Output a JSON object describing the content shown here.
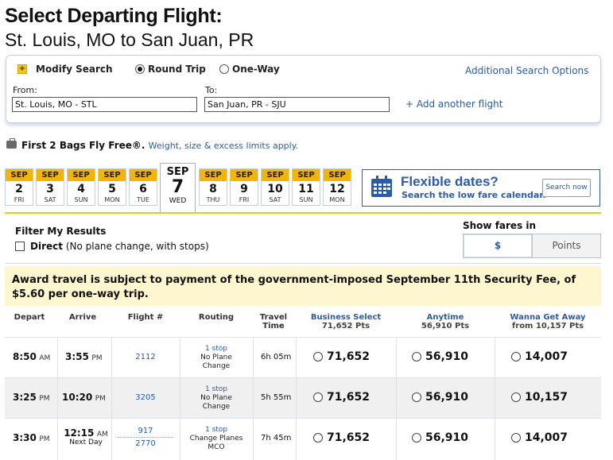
{
  "header": {
    "title": "Select Departing Flight:",
    "route": "St. Louis, MO to San Juan, PR"
  },
  "search": {
    "modify_label": "Modify Search",
    "round_trip": "Round Trip",
    "one_way": "One-Way",
    "additional_options": "Additional Search Options",
    "from_label": "From:",
    "from_value": "St. Louis, MO - STL",
    "to_label": "To:",
    "to_value": "San Juan, PR - SJU",
    "add_flight": "+ Add another flight"
  },
  "bags": {
    "bold": "First 2 Bags Fly Free®.",
    "link": "Weight, size & excess limits apply."
  },
  "dates": [
    {
      "mon": "SEP",
      "num": "2",
      "dow": "FRI"
    },
    {
      "mon": "SEP",
      "num": "3",
      "dow": "SAT"
    },
    {
      "mon": "SEP",
      "num": "4",
      "dow": "SUN"
    },
    {
      "mon": "SEP",
      "num": "5",
      "dow": "MON"
    },
    {
      "mon": "SEP",
      "num": "6",
      "dow": "TUE"
    },
    {
      "mon": "SEP",
      "num": "7",
      "dow": "WED"
    },
    {
      "mon": "SEP",
      "num": "8",
      "dow": "THU"
    },
    {
      "mon": "SEP",
      "num": "9",
      "dow": "FRI"
    },
    {
      "mon": "SEP",
      "num": "10",
      "dow": "SAT"
    },
    {
      "mon": "SEP",
      "num": "11",
      "dow": "SUN"
    },
    {
      "mon": "SEP",
      "num": "12",
      "dow": "MON"
    }
  ],
  "flexible": {
    "title": "Flexible dates?",
    "subtitle": "Search the low fare calendar.",
    "button": "Search now"
  },
  "filter": {
    "heading": "Filter My Results",
    "direct_bold": "Direct",
    "direct_note": "(No plane change, with stops)",
    "show_fares": "Show fares in",
    "dollar": "$",
    "points": "Points"
  },
  "award_notice": "Award travel is subject to payment of the government-imposed September 11th Security Fee, of $5.60 per one-way trip.",
  "table": {
    "headers": {
      "depart": "Depart",
      "arrive": "Arrive",
      "flight": "Flight #",
      "routing": "Routing",
      "travel1": "Travel",
      "travel2": "Time",
      "business": "Business Select",
      "business_sub": "71,652 Pts",
      "anytime": "Anytime",
      "anytime_sub": "56,910 Pts",
      "wanna": "Wanna Get Away",
      "wanna_sub": "from 10,157 Pts"
    },
    "rows": [
      {
        "dep": "8:50",
        "dep_ampm": "AM",
        "arr": "3:55",
        "arr_ampm": "PM",
        "arr_note": "",
        "flight1": "2112",
        "flight2": "",
        "stops": "1 stop",
        "routing1": "No Plane",
        "routing2": "Change",
        "time": "6h 05m",
        "business": "71,652",
        "anytime": "56,910",
        "wanna": "14,007"
      },
      {
        "dep": "3:25",
        "dep_ampm": "PM",
        "arr": "10:20",
        "arr_ampm": "PM",
        "arr_note": "",
        "flight1": "3205",
        "flight2": "",
        "stops": "1 stop",
        "routing1": "No Plane",
        "routing2": "Change",
        "time": "5h 55m",
        "business": "71,652",
        "anytime": "56,910",
        "wanna": "10,157"
      },
      {
        "dep": "3:30",
        "dep_ampm": "PM",
        "arr": "12:15",
        "arr_ampm": "AM",
        "arr_note": "Next Day",
        "flight1": "917",
        "flight2": "2770",
        "stops": "1 stop",
        "routing1": "Change Planes",
        "routing2": "MCO",
        "time": "7h 45m",
        "business": "71,652",
        "anytime": "56,910",
        "wanna": "14,007"
      }
    ]
  },
  "colors": {
    "accent_blue": "#2a5ca8",
    "accent_yellow": "#f5b400",
    "notice_bg": "#fdf6cf"
  }
}
